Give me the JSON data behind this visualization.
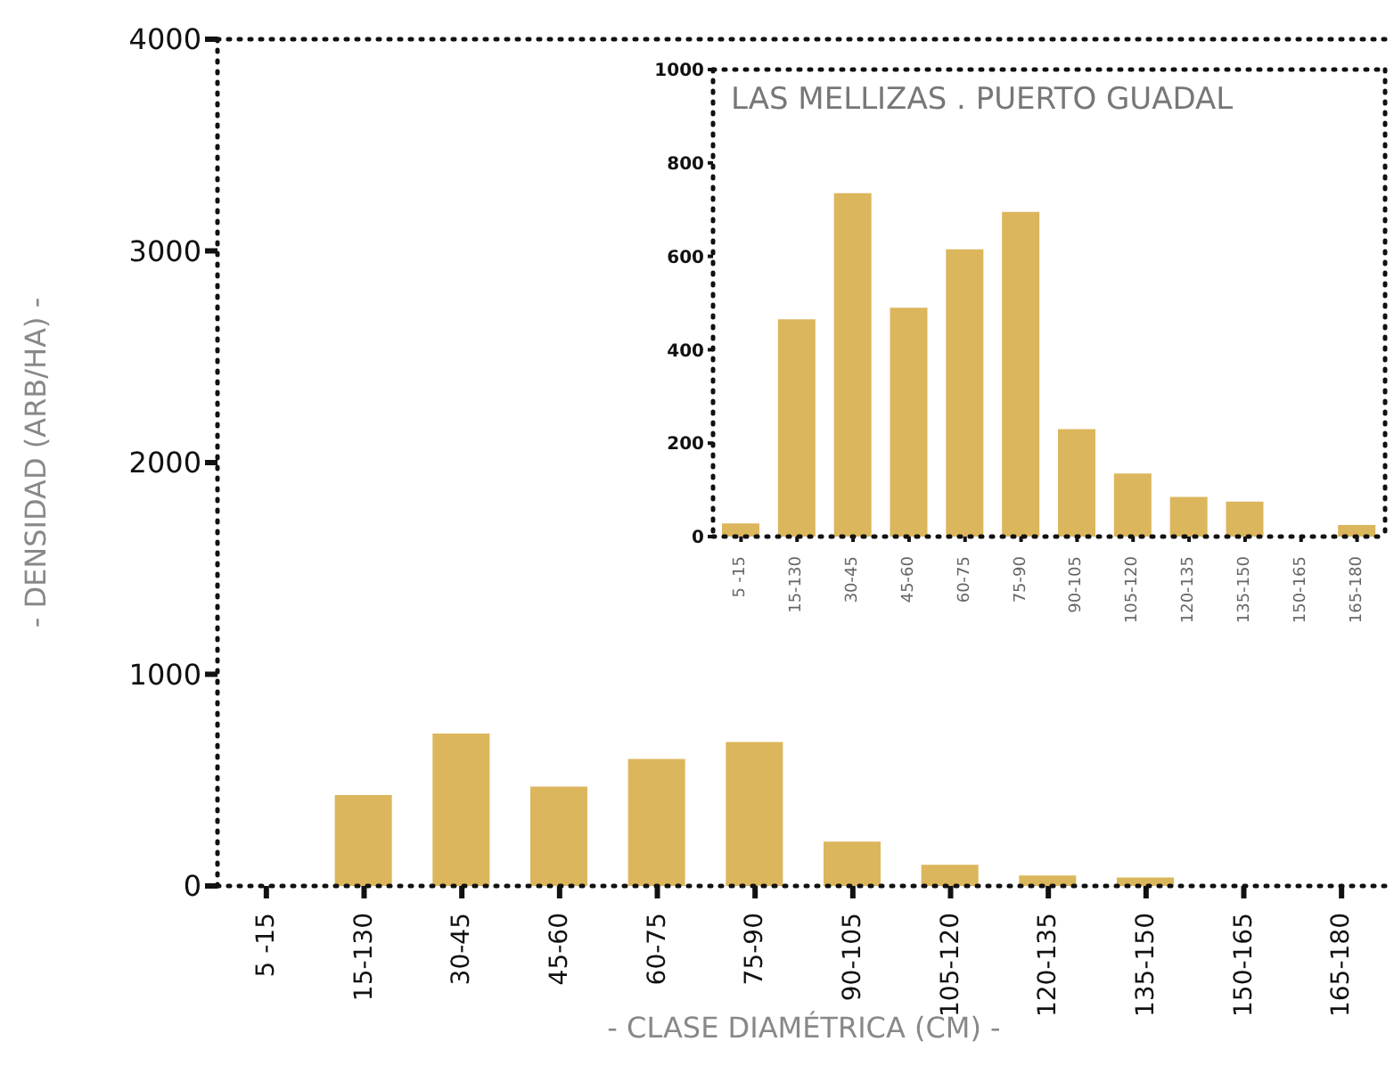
{
  "chart_data": [
    {
      "type": "bar",
      "categories": [
        "5 -15",
        "15-130",
        "30-45",
        "45-60",
        "60-75",
        "75-90",
        "90-105",
        "105-120",
        "120-135",
        "135-150",
        "150-165",
        "165-180"
      ],
      "values": [
        0,
        430,
        720,
        470,
        600,
        680,
        210,
        100,
        50,
        40,
        0,
        0
      ],
      "color": "#dbb65c",
      "ylim": [
        0,
        4000
      ],
      "yticks": [
        0,
        1000,
        2000,
        3000,
        4000
      ],
      "xlabel": "- CLASE DIAMÉTRICA (CM) -",
      "ylabel": "- DENSIDAD (ARB/HA) -",
      "grid": false,
      "legend": false
    },
    {
      "type": "bar",
      "title": "LAS MELLIZAS . PUERTO GUADAL",
      "categories": [
        "5 -15",
        "15-130",
        "30-45",
        "45-60",
        "60-75",
        "75-90",
        "90-105",
        "105-120",
        "120-135",
        "135-150",
        "150-165",
        "165-180"
      ],
      "values": [
        28,
        465,
        735,
        490,
        615,
        695,
        230,
        135,
        85,
        75,
        0,
        25
      ],
      "color": "#dbb65c",
      "ylim": [
        0,
        1000
      ],
      "yticks": [
        0,
        200,
        400,
        600,
        800,
        1000
      ],
      "grid": false,
      "legend": false
    }
  ]
}
